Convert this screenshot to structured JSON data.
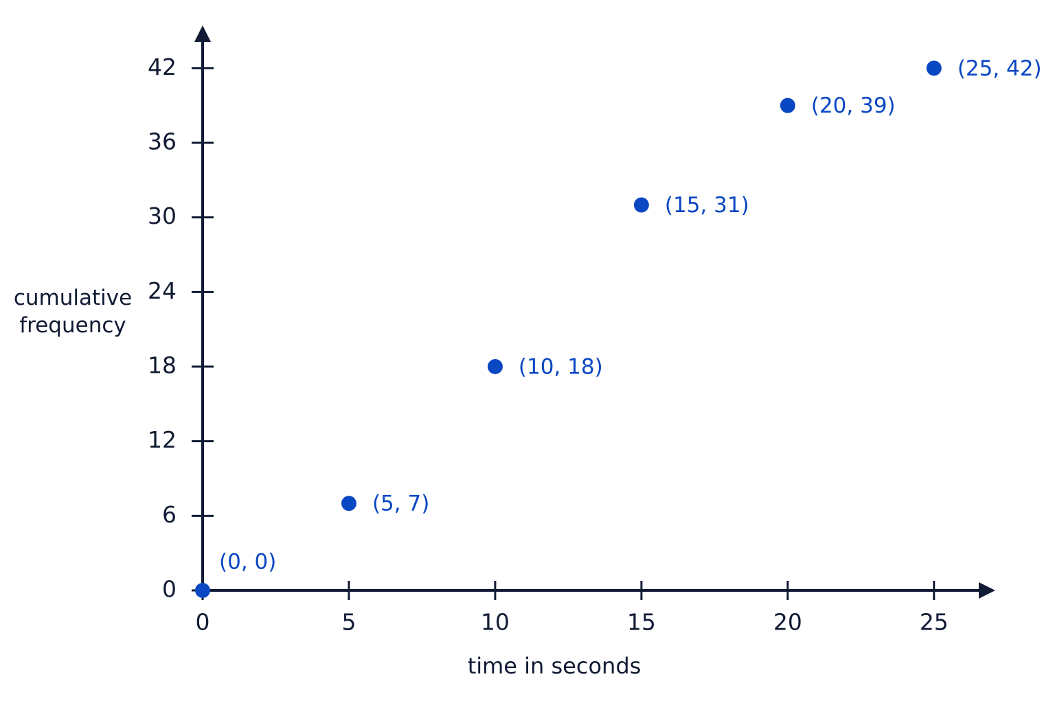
{
  "chart_data": {
    "type": "scatter",
    "x_label": "time in seconds",
    "y_label": "cumulative frequency",
    "x": [
      0,
      5,
      10,
      15,
      20,
      25
    ],
    "series": [
      {
        "color": "#0a47c2",
        "values": [
          0,
          7,
          18,
          31,
          39,
          42
        ],
        "value_labels": [
          "(0, 0)",
          "(5, 7)",
          "(10, 18)",
          "(15, 31)",
          "(20, 39)",
          "(25, 42)"
        ]
      }
    ],
    "xlim": [
      0,
      27
    ],
    "ylim": [
      0,
      45
    ],
    "xticks": [
      0,
      5,
      10,
      15,
      20,
      25
    ],
    "yticks": [
      0,
      6,
      12,
      18,
      24,
      30,
      36,
      42
    ],
    "axis_color": "#111b33"
  }
}
